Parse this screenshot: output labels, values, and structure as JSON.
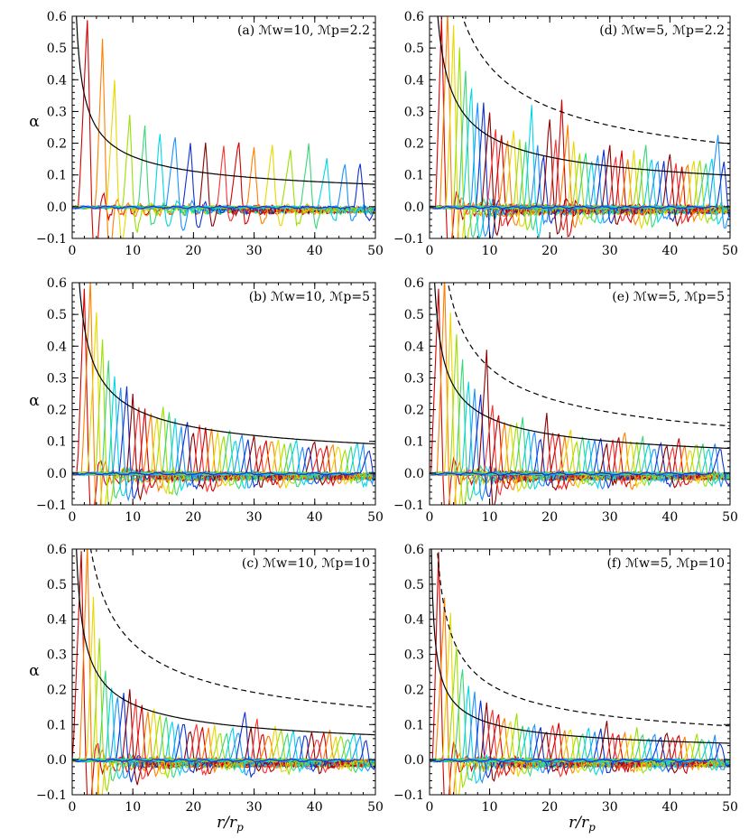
{
  "figure": {
    "xlabel": "r/r_p",
    "ylabel": "α"
  },
  "chart_data": [
    {
      "id": "a",
      "type": "line",
      "title": "(a) ℳw=10, ℳp=2.2",
      "xlim": [
        0,
        50
      ],
      "ylim": [
        -0.1,
        0.6
      ],
      "xticks": [
        0,
        10,
        20,
        30,
        40,
        50
      ],
      "yticks": [
        -0.1,
        0.0,
        0.1,
        0.2,
        0.3,
        0.4,
        0.5,
        0.6
      ],
      "curves": {
        "solid": {
          "formula": "0.5/sqrt(r)"
        }
      },
      "peaks": {
        "r": [
          2.5,
          5,
          7,
          9.5,
          12,
          14.5,
          17,
          19.5,
          22,
          25,
          27.5,
          30,
          33,
          36,
          39,
          42,
          45,
          47.5
        ],
        "alpha": [
          0.6,
          0.52,
          0.4,
          0.3,
          0.27,
          0.26,
          0.24,
          0.2,
          0.21,
          0.2,
          0.22,
          0.2,
          0.2,
          0.18,
          0.19,
          0.15,
          0.15,
          0.16
        ]
      }
    },
    {
      "id": "d",
      "type": "line",
      "title": "(d) ℳw=5, ℳp=2.2",
      "xlim": [
        0,
        50
      ],
      "ylim": [
        -0.1,
        0.6
      ],
      "xticks": [
        0,
        10,
        20,
        30,
        40,
        50
      ],
      "yticks": [
        -0.1,
        0.0,
        0.1,
        0.2,
        0.3,
        0.4,
        0.5,
        0.6
      ],
      "curves": {
        "solid": {
          "formula": "0.7/sqrt(r)"
        },
        "dashed": {
          "formula": "1.4/sqrt(r)"
        }
      },
      "peaks": {
        "r": [
          2,
          3,
          4,
          5,
          6,
          7,
          8,
          9,
          10,
          11,
          12,
          13,
          14,
          15,
          16,
          17,
          18,
          19,
          20,
          21,
          22,
          23,
          24,
          25,
          26,
          27,
          28,
          29,
          30,
          31,
          32,
          33,
          34,
          35,
          36,
          37,
          38,
          39,
          40,
          41,
          42,
          43,
          44,
          45,
          46,
          47,
          48,
          49
        ],
        "alpha": [
          0.6,
          0.6,
          0.55,
          0.5,
          0.45,
          0.4,
          0.35,
          0.33,
          0.3,
          0.25,
          0.24,
          0.22,
          0.25,
          0.21,
          0.2,
          0.32,
          0.2,
          0.18,
          0.3,
          0.22,
          0.33,
          0.25,
          0.22,
          0.18,
          0.18,
          0.16,
          0.17,
          0.18,
          0.2,
          0.17,
          0.19,
          0.16,
          0.18,
          0.15,
          0.2,
          0.17,
          0.16,
          0.15,
          0.18,
          0.14,
          0.13,
          0.15,
          0.16,
          0.17,
          0.14,
          0.16,
          0.23,
          0.15
        ]
      }
    },
    {
      "id": "b",
      "type": "line",
      "title": "(b) ℳw=10, ℳp=5",
      "xlim": [
        0,
        50
      ],
      "ylim": [
        -0.1,
        0.6
      ],
      "xticks": [
        0,
        10,
        20,
        30,
        40,
        50
      ],
      "yticks": [
        -0.1,
        0.0,
        0.1,
        0.2,
        0.3,
        0.4,
        0.5,
        0.6
      ],
      "curves": {
        "solid": {
          "formula": "0.65/sqrt(r)"
        }
      },
      "peaks": {
        "r": [
          2,
          3,
          4,
          5,
          6,
          7,
          8,
          9,
          10,
          11,
          12,
          13,
          14,
          15,
          16,
          17,
          18,
          19,
          20,
          21,
          22,
          23,
          24,
          25,
          26,
          27,
          28,
          29,
          30,
          31,
          32,
          33,
          34,
          35,
          36,
          37,
          38,
          39,
          40,
          41,
          42,
          43,
          44,
          45,
          46,
          47,
          48,
          49
        ],
        "alpha": [
          0.6,
          0.6,
          0.5,
          0.42,
          0.37,
          0.33,
          0.28,
          0.27,
          0.24,
          0.22,
          0.21,
          0.2,
          0.2,
          0.22,
          0.2,
          0.18,
          0.16,
          0.17,
          0.15,
          0.16,
          0.14,
          0.15,
          0.14,
          0.13,
          0.15,
          0.12,
          0.13,
          0.11,
          0.12,
          0.1,
          0.11,
          0.12,
          0.11,
          0.1,
          0.1,
          0.11,
          0.09,
          0.1,
          0.11,
          0.09,
          0.09,
          0.1,
          0.1,
          0.08,
          0.09,
          0.1,
          0.09,
          0.08
        ]
      }
    },
    {
      "id": "e",
      "type": "line",
      "title": "(e) ℳw=5, ℳp=5",
      "xlim": [
        0,
        50
      ],
      "ylim": [
        -0.1,
        0.6
      ],
      "xticks": [
        0,
        10,
        20,
        30,
        40,
        50
      ],
      "yticks": [
        -0.1,
        0.0,
        0.1,
        0.2,
        0.3,
        0.4,
        0.5,
        0.6
      ],
      "curves": {
        "solid": {
          "formula": "0.55/sqrt(r)"
        },
        "dashed": {
          "formula": "1.05/sqrt(r)"
        }
      },
      "peaks": {
        "r": [
          1.5,
          2.5,
          3.5,
          4.5,
          5.5,
          6.5,
          7.5,
          8.5,
          9.5,
          10.5,
          11.5,
          12.5,
          13.5,
          14.5,
          15.5,
          16.5,
          17.5,
          18.5,
          19.5,
          20.5,
          21.5,
          22.5,
          23.5,
          24.5,
          25.5,
          26.5,
          27.5,
          28.5,
          29.5,
          30.5,
          31.5,
          32.5,
          33.5,
          34.5,
          35.5,
          36.5,
          37.5,
          38.5,
          39.5,
          40.5,
          41.5,
          42.5,
          43.5,
          44.5,
          45.5,
          46.5,
          47.5,
          48.5
        ],
        "alpha": [
          0.6,
          0.6,
          0.5,
          0.45,
          0.38,
          0.32,
          0.28,
          0.25,
          0.38,
          0.22,
          0.2,
          0.18,
          0.17,
          0.16,
          0.18,
          0.14,
          0.15,
          0.13,
          0.2,
          0.14,
          0.13,
          0.12,
          0.14,
          0.11,
          0.13,
          0.12,
          0.11,
          0.12,
          0.1,
          0.11,
          0.13,
          0.15,
          0.11,
          0.1,
          0.12,
          0.1,
          0.09,
          0.11,
          0.1,
          0.09,
          0.12,
          0.1,
          0.09,
          0.11,
          0.1,
          0.09,
          0.1,
          0.09
        ]
      }
    },
    {
      "id": "c",
      "type": "line",
      "title": "(c) ℳw=10, ℳp=10",
      "xlim": [
        0,
        50
      ],
      "ylim": [
        -0.1,
        0.6
      ],
      "xticks": [
        0,
        10,
        20,
        30,
        40,
        50
      ],
      "yticks": [
        -0.1,
        0.0,
        0.1,
        0.2,
        0.3,
        0.4,
        0.5,
        0.6
      ],
      "curves": {
        "solid": {
          "formula": "0.5/sqrt(r)"
        },
        "dashed": {
          "formula": "1.05/sqrt(r)"
        }
      },
      "peaks": {
        "r": [
          1.5,
          2.5,
          3.5,
          4.5,
          5.5,
          6.5,
          7.5,
          8.5,
          9.5,
          10.5,
          11.5,
          12.5,
          13.5,
          14.5,
          15.5,
          16.5,
          17.5,
          18.5,
          19.5,
          20.5,
          21.5,
          22.5,
          23.5,
          24.5,
          25.5,
          26.5,
          27.5,
          28.5,
          29.5,
          30.5,
          31.5,
          32.5,
          33.5,
          34.5,
          35.5,
          36.5,
          37.5,
          38.5,
          39.5,
          40.5,
          41.5,
          42.5,
          43.5,
          44.5,
          45.5,
          46.5,
          47.5,
          48.5
        ],
        "alpha": [
          0.6,
          0.6,
          0.45,
          0.35,
          0.28,
          0.23,
          0.2,
          0.19,
          0.2,
          0.17,
          0.16,
          0.15,
          0.16,
          0.14,
          0.13,
          0.12,
          0.11,
          0.12,
          0.1,
          0.11,
          0.1,
          0.09,
          0.1,
          0.09,
          0.08,
          0.1,
          0.09,
          0.14,
          0.1,
          0.13,
          0.09,
          0.08,
          0.1,
          0.09,
          0.08,
          0.09,
          0.08,
          0.09,
          0.08,
          0.07,
          0.08,
          0.09,
          0.07,
          0.08,
          0.07,
          0.08,
          0.07,
          0.07
        ]
      }
    },
    {
      "id": "f",
      "type": "line",
      "title": "(f) ℳw=5, ℳp=10",
      "xlim": [
        0,
        50
      ],
      "ylim": [
        -0.1,
        0.6
      ],
      "xticks": [
        0,
        10,
        20,
        30,
        40,
        50
      ],
      "yticks": [
        -0.1,
        0.0,
        0.1,
        0.2,
        0.3,
        0.4,
        0.5,
        0.6
      ],
      "curves": {
        "solid": {
          "formula": "0.33/sqrt(r)"
        },
        "dashed": {
          "formula": "0.68/sqrt(r)"
        }
      },
      "peaks": {
        "r": [
          1.5,
          2.5,
          3.5,
          4.5,
          5.5,
          6.5,
          7.5,
          8.5,
          9.5,
          10.5,
          11.5,
          12.5,
          13.5,
          14.5,
          15.5,
          16.5,
          17.5,
          18.5,
          19.5,
          20.5,
          21.5,
          22.5,
          23.5,
          24.5,
          25.5,
          26.5,
          27.5,
          28.5,
          29.5,
          30.5,
          31.5,
          32.5,
          33.5,
          34.5,
          35.5,
          36.5,
          37.5,
          38.5,
          39.5,
          40.5,
          41.5,
          42.5,
          43.5,
          44.5,
          45.5,
          46.5,
          47.5,
          48.5
        ],
        "alpha": [
          0.6,
          0.45,
          0.4,
          0.33,
          0.28,
          0.24,
          0.2,
          0.18,
          0.17,
          0.15,
          0.14,
          0.13,
          0.12,
          0.13,
          0.11,
          0.1,
          0.12,
          0.1,
          0.09,
          0.11,
          0.1,
          0.09,
          0.1,
          0.08,
          0.09,
          0.1,
          0.08,
          0.09,
          0.11,
          0.08,
          0.09,
          0.08,
          0.07,
          0.09,
          0.08,
          0.07,
          0.08,
          0.07,
          0.09,
          0.07,
          0.08,
          0.07,
          0.06,
          0.08,
          0.07,
          0.06,
          0.07,
          0.06
        ]
      }
    }
  ],
  "colors": {
    "series": [
      "#d40000",
      "#ff7f00",
      "#e8d800",
      "#9be000",
      "#3ad67a",
      "#00d7e6",
      "#1e90ff",
      "#1030d0",
      "#8b0000",
      "#ff3030"
    ],
    "axis": "#000000"
  }
}
